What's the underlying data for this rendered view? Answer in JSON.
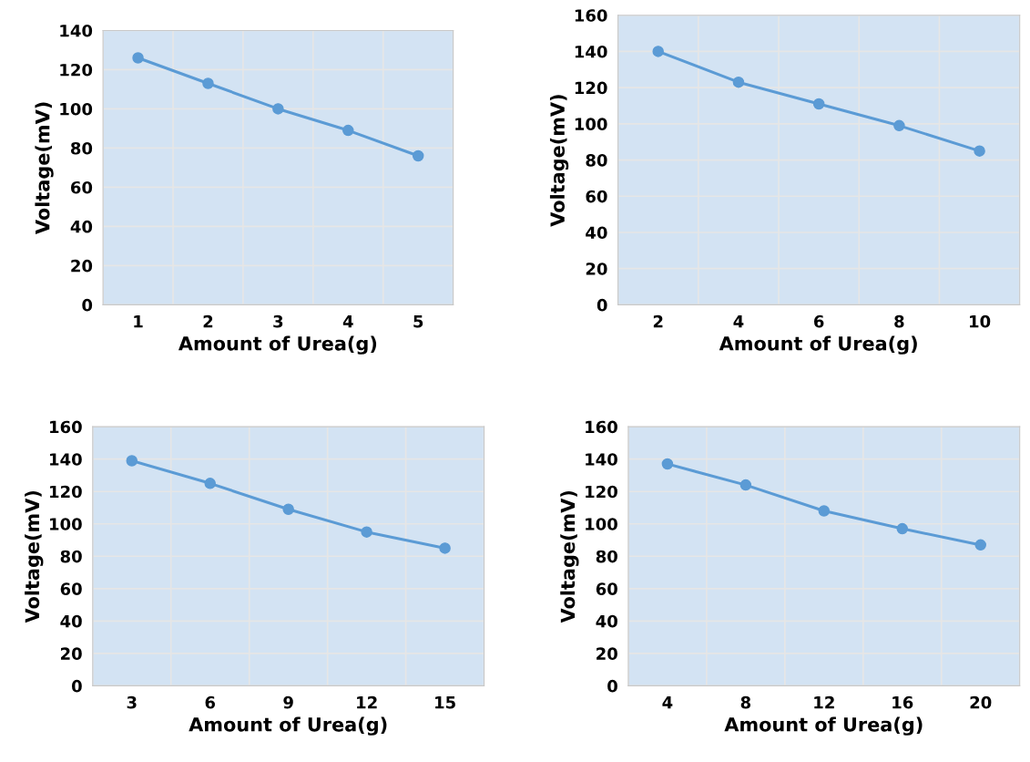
{
  "chart_data": [
    {
      "type": "line",
      "xlabel": "Amount of Urea(g)",
      "ylabel": "Voltage(mV)",
      "categories": [
        "1",
        "2",
        "3",
        "4",
        "5"
      ],
      "series": [
        {
          "color": "#5b9bd5",
          "values": [
            126,
            113,
            100,
            89,
            76
          ]
        }
      ],
      "ylim": [
        0,
        140
      ],
      "yticks": [
        0,
        20,
        40,
        60,
        80,
        100,
        120,
        140
      ],
      "grid": true,
      "marker": "circle",
      "line_style": "solid"
    },
    {
      "type": "line",
      "xlabel": "Amount of Urea(g)",
      "ylabel": "Voltage(mV)",
      "categories": [
        "2",
        "4",
        "6",
        "8",
        "10"
      ],
      "series": [
        {
          "color": "#5b9bd5",
          "values": [
            140,
            123,
            111,
            99,
            85
          ]
        }
      ],
      "ylim": [
        0,
        160
      ],
      "yticks": [
        0,
        20,
        40,
        60,
        80,
        100,
        120,
        140,
        160
      ],
      "grid": true,
      "marker": "circle",
      "line_style": "solid"
    },
    {
      "type": "line",
      "xlabel": "Amount of Urea(g)",
      "ylabel": "Voltage(mV)",
      "categories": [
        "3",
        "6",
        "9",
        "12",
        "15"
      ],
      "series": [
        {
          "color": "#5b9bd5",
          "values": [
            139,
            125,
            109,
            95,
            85
          ]
        }
      ],
      "ylim": [
        0,
        160
      ],
      "yticks": [
        0,
        20,
        40,
        60,
        80,
        100,
        120,
        140,
        160
      ],
      "grid": true,
      "marker": "circle",
      "line_style": "solid"
    },
    {
      "type": "line",
      "xlabel": "Amount of Urea(g)",
      "ylabel": "Voltage(mV)",
      "categories": [
        "4",
        "8",
        "12",
        "16",
        "20"
      ],
      "series": [
        {
          "color": "#5b9bd5",
          "values": [
            137,
            124,
            108,
            97,
            87
          ]
        }
      ],
      "ylim": [
        0,
        160
      ],
      "yticks": [
        0,
        20,
        40,
        60,
        80,
        100,
        120,
        140,
        160
      ],
      "grid": true,
      "marker": "circle",
      "line_style": "solid"
    }
  ]
}
